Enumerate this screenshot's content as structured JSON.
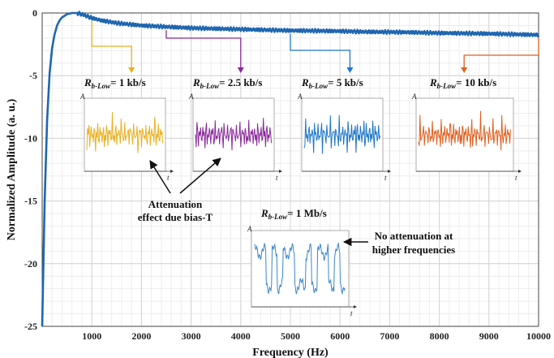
{
  "chart_data": {
    "type": "line",
    "xlabel": "Frequency (Hz)",
    "ylabel": "Normalized Amplitude (a. u.)",
    "xlim": [
      0,
      10000
    ],
    "ylim": [
      -25,
      0
    ],
    "xticks": [
      1000,
      2000,
      3000,
      4000,
      5000,
      6000,
      7000,
      8000,
      9000,
      10000
    ],
    "yticks": [
      0,
      -5,
      -10,
      -15,
      -20,
      -25
    ],
    "grid": true,
    "minor_grid": true,
    "line_color": "#1f66b0",
    "series": [
      {
        "x": [
          0,
          50,
          100,
          150,
          200,
          250,
          300,
          350,
          400,
          500,
          600,
          700,
          800,
          900,
          1000,
          1200,
          1500,
          2000,
          2500,
          3000,
          3500,
          4000,
          4500,
          5000,
          5500,
          6000,
          6500,
          7000,
          7500,
          8000,
          8500,
          9000,
          9500,
          10000
        ],
        "y": [
          -25,
          -15,
          -8.5,
          -4.8,
          -2.8,
          -1.7,
          -1.0,
          -0.6,
          -0.35,
          -0.1,
          0,
          0,
          -0.1,
          -0.25,
          -0.4,
          -0.6,
          -0.8,
          -1.0,
          -1.1,
          -1.2,
          -1.25,
          -1.3,
          -1.35,
          -1.4,
          -1.42,
          -1.45,
          -1.5,
          -1.52,
          -1.55,
          -1.6,
          -1.62,
          -1.65,
          -1.7,
          -1.75
        ]
      }
    ],
    "insets": [
      {
        "label_main": "R",
        "label_sub": "b-Low",
        "label_value": "= 1 kb/s",
        "color": "#e8b020",
        "callout_x": 1800
      },
      {
        "label_main": "R",
        "label_sub": "b-Low",
        "label_value": "= 2.5 kb/s",
        "color": "#8a2a9a",
        "callout_x": 4000
      },
      {
        "label_main": "R",
        "label_sub": "b-Low",
        "label_value": "= 5 kb/s",
        "color": "#1f77c8",
        "callout_x": 6200
      },
      {
        "label_main": "R",
        "label_sub": "b-Low",
        "label_value": "= 10 kb/s",
        "color": "#e06020",
        "callout_x": 8500
      },
      {
        "label_main": "R",
        "label_sub": "b-Low",
        "label_value": "= 1 Mb/s",
        "color": "#3a86c8"
      }
    ],
    "inset_axis_x": "t",
    "inset_axis_y": "A",
    "annotations": {
      "attenuation": [
        "Attenuation",
        "effect due bias-T"
      ],
      "no_attenuation": [
        "No attenuation at",
        "higher frequencies"
      ]
    }
  }
}
